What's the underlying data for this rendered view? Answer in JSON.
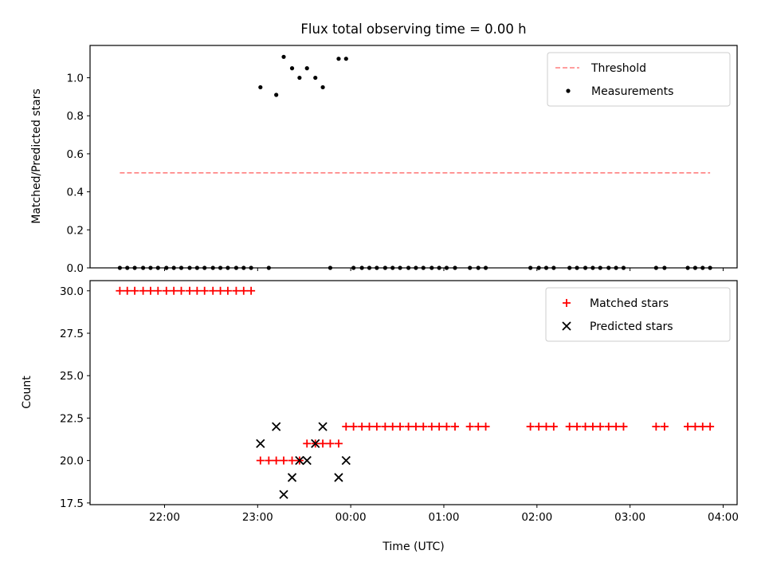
{
  "title": "Flux total observing time = 0.00 h",
  "chart_data": [
    {
      "type": "scatter",
      "panel": "top",
      "title": "Flux total observing time = 0.00 h",
      "xlabel": "",
      "ylabel": "Matched/Predicted stars",
      "x_unit": "hours, UTC (values >= 24 are after midnight)",
      "xlim": [
        21.2,
        28.15
      ],
      "ylim": [
        0,
        1.17
      ],
      "grid": false,
      "legend_position": "top-right",
      "x_ticks": [
        22,
        23,
        24,
        25,
        26,
        27,
        28
      ],
      "x_tick_labels": [
        "22:00",
        "23:00",
        "00:00",
        "01:00",
        "02:00",
        "03:00",
        "04:00"
      ],
      "y_ticks": [
        0.0,
        0.2,
        0.4,
        0.6,
        0.8,
        1.0
      ],
      "y_tick_labels": [
        "0.0",
        "0.2",
        "0.4",
        "0.6",
        "0.8",
        "1.0"
      ],
      "series": [
        {
          "name": "Threshold",
          "kind": "line",
          "style": "dashed",
          "color": "#ff7f7f",
          "x": [
            21.52,
            27.86
          ],
          "y": [
            0.5,
            0.5
          ]
        },
        {
          "name": "Measurements",
          "kind": "scatter",
          "marker": "dot",
          "color": "#000000",
          "x": [
            21.52,
            21.6,
            21.68,
            21.77,
            21.85,
            21.93,
            22.02,
            22.1,
            22.18,
            22.27,
            22.35,
            22.43,
            22.52,
            22.6,
            22.68,
            22.77,
            22.85,
            22.93,
            23.03,
            23.12,
            23.2,
            23.28,
            23.37,
            23.45,
            23.53,
            23.62,
            23.7,
            23.78,
            23.87,
            23.95,
            24.03,
            24.12,
            24.2,
            24.28,
            24.37,
            24.45,
            24.53,
            24.62,
            24.7,
            24.78,
            24.87,
            24.95,
            25.03,
            25.12,
            25.28,
            25.37,
            25.45,
            25.93,
            26.02,
            26.1,
            26.18,
            26.35,
            26.43,
            26.52,
            26.6,
            26.68,
            26.77,
            26.85,
            26.93,
            27.28,
            27.37,
            27.62,
            27.7,
            27.78,
            27.86
          ],
          "y": [
            0.0,
            0.0,
            0.0,
            0.0,
            0.0,
            0.0,
            0.0,
            0.0,
            0.0,
            0.0,
            0.0,
            0.0,
            0.0,
            0.0,
            0.0,
            0.0,
            0.0,
            0.0,
            0.95,
            0.0,
            0.91,
            1.11,
            1.05,
            1.0,
            1.05,
            1.0,
            0.95,
            0.0,
            1.1,
            1.1,
            0.0,
            0.0,
            0.0,
            0.0,
            0.0,
            0.0,
            0.0,
            0.0,
            0.0,
            0.0,
            0.0,
            0.0,
            0.0,
            0.0,
            0.0,
            0.0,
            0.0,
            0.0,
            0.0,
            0.0,
            0.0,
            0.0,
            0.0,
            0.0,
            0.0,
            0.0,
            0.0,
            0.0,
            0.0,
            0.0,
            0.0,
            0.0,
            0.0,
            0.0,
            0.0
          ]
        }
      ]
    },
    {
      "type": "scatter",
      "panel": "bottom",
      "title": "",
      "xlabel": "Time (UTC)",
      "ylabel": "Count",
      "x_unit": "hours, UTC (values >= 24 are after midnight)",
      "xlim": [
        21.2,
        28.15
      ],
      "ylim": [
        17.4,
        30.6
      ],
      "grid": false,
      "legend_position": "top-right",
      "x_ticks": [
        22,
        23,
        24,
        25,
        26,
        27,
        28
      ],
      "x_tick_labels": [
        "22:00",
        "23:00",
        "00:00",
        "01:00",
        "02:00",
        "03:00",
        "04:00"
      ],
      "y_ticks": [
        17.5,
        20.0,
        22.5,
        25.0,
        27.5,
        30.0
      ],
      "y_tick_labels": [
        "17.5",
        "20.0",
        "22.5",
        "25.0",
        "27.5",
        "30.0"
      ],
      "series": [
        {
          "name": "Matched stars",
          "kind": "scatter",
          "marker": "plus",
          "color": "#ff0000",
          "x": [
            21.52,
            21.6,
            21.68,
            21.77,
            21.85,
            21.93,
            22.02,
            22.1,
            22.18,
            22.27,
            22.35,
            22.43,
            22.52,
            22.6,
            22.68,
            22.77,
            22.85,
            22.93,
            23.03,
            23.12,
            23.2,
            23.28,
            23.37,
            23.45,
            23.53,
            23.62,
            23.7,
            23.78,
            23.87,
            23.95,
            24.03,
            24.12,
            24.2,
            24.28,
            24.37,
            24.45,
            24.53,
            24.62,
            24.7,
            24.78,
            24.87,
            24.95,
            25.03,
            25.12,
            25.28,
            25.37,
            25.45,
            25.93,
            26.02,
            26.1,
            26.18,
            26.35,
            26.43,
            26.52,
            26.6,
            26.68,
            26.77,
            26.85,
            26.93,
            27.28,
            27.37,
            27.62,
            27.7,
            27.78,
            27.86
          ],
          "y": [
            30,
            30,
            30,
            30,
            30,
            30,
            30,
            30,
            30,
            30,
            30,
            30,
            30,
            30,
            30,
            30,
            30,
            30,
            20,
            20,
            20,
            20,
            20,
            20,
            21,
            21,
            21,
            21,
            21,
            22,
            22,
            22,
            22,
            22,
            22,
            22,
            22,
            22,
            22,
            22,
            22,
            22,
            22,
            22,
            22,
            22,
            22,
            22,
            22,
            22,
            22,
            22,
            22,
            22,
            22,
            22,
            22,
            22,
            22,
            22,
            22,
            22,
            22,
            22,
            22
          ]
        },
        {
          "name": "Predicted stars",
          "kind": "scatter",
          "marker": "x",
          "color": "#000000",
          "x": [
            23.03,
            23.2,
            23.28,
            23.37,
            23.45,
            23.53,
            23.62,
            23.7,
            23.87,
            23.95
          ],
          "y": [
            21,
            22,
            18,
            19,
            20,
            20,
            21,
            22,
            19,
            20
          ]
        }
      ]
    }
  ]
}
